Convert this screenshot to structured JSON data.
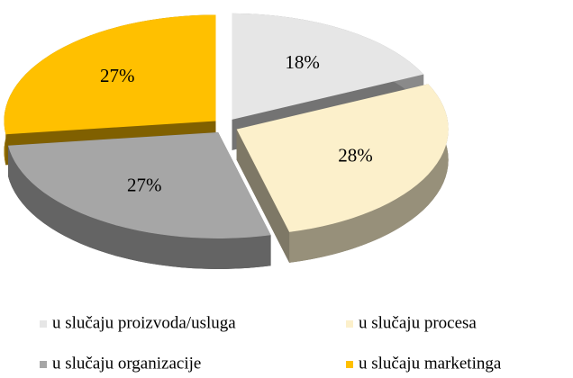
{
  "chart_data": {
    "type": "pie",
    "categories": [
      "u slučaju proizvoda/usluga",
      "u slučaju procesa",
      "u slučaju organizacije",
      "u slučaju marketinga"
    ],
    "values": [
      18,
      28,
      27,
      27
    ],
    "value_labels": [
      "18%",
      "28%",
      "27%",
      "27%"
    ],
    "colors": [
      "#e6e6e6",
      "#fcf0cb",
      "#a6a6a6",
      "#ffc000"
    ],
    "legend": "bottom"
  }
}
